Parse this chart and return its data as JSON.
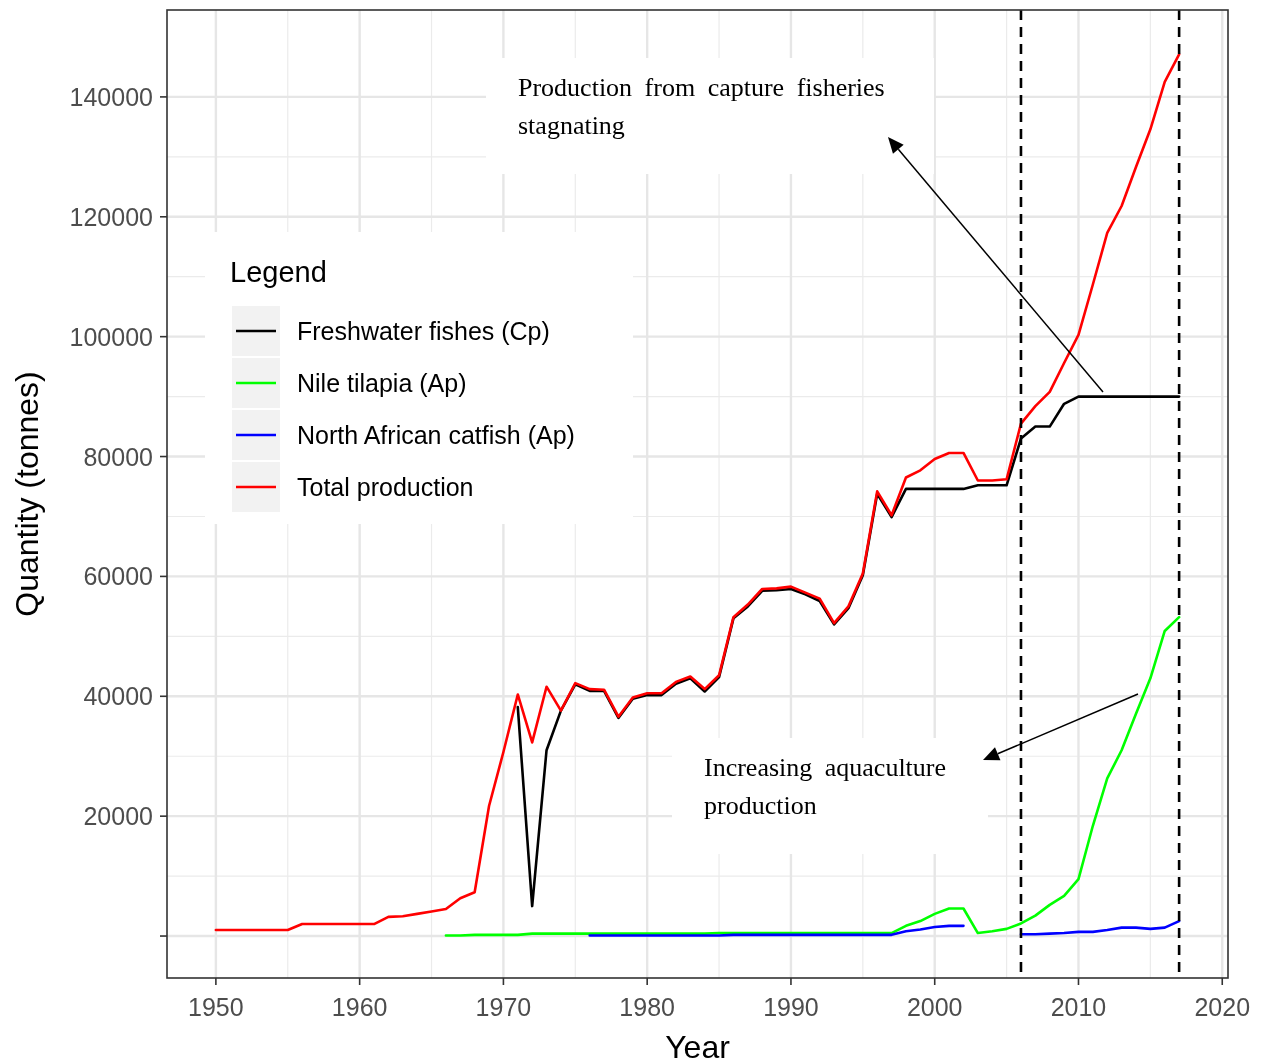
{
  "chart_data": {
    "type": "line",
    "xlabel": "Year",
    "ylabel": "Quantity (tonnes)",
    "legend_title": "Legend",
    "legend": "left",
    "grid": true,
    "line_style": "solid",
    "xlim": [
      1946.6,
      2020.4
    ],
    "ylim": [
      -7000,
      154500
    ],
    "xticks": [
      1950,
      1960,
      1970,
      1980,
      1990,
      2000,
      2010,
      2020
    ],
    "yticks": [
      {
        "value": 0,
        "label": null
      },
      20000,
      40000,
      60000,
      80000,
      100000,
      120000,
      140000
    ],
    "x": [
      1950,
      1951,
      1952,
      1953,
      1954,
      1955,
      1956,
      1957,
      1958,
      1959,
      1960,
      1961,
      1962,
      1963,
      1964,
      1965,
      1966,
      1967,
      1968,
      1969,
      1970,
      1971,
      1972,
      1973,
      1974,
      1975,
      1976,
      1977,
      1978,
      1979,
      1980,
      1981,
      1982,
      1983,
      1984,
      1985,
      1986,
      1987,
      1988,
      1989,
      1990,
      1991,
      1992,
      1993,
      1994,
      1995,
      1996,
      1997,
      1998,
      1999,
      2000,
      2001,
      2002,
      2003,
      2004,
      2005,
      2006,
      2007,
      2008,
      2009,
      2010,
      2011,
      2012,
      2013,
      2014,
      2015,
      2016,
      2017
    ],
    "series": [
      {
        "name": "Freshwater fishes (Cp)",
        "color": "#000000",
        "values": [
          null,
          null,
          null,
          null,
          null,
          null,
          null,
          null,
          null,
          null,
          null,
          null,
          null,
          null,
          null,
          null,
          null,
          null,
          null,
          null,
          null,
          38200,
          5000,
          31000,
          37600,
          42000,
          40900,
          40900,
          36400,
          39600,
          40200,
          40200,
          42100,
          43000,
          40800,
          43200,
          53000,
          55000,
          57600,
          57700,
          57900,
          57000,
          55900,
          52000,
          54700,
          60200,
          73800,
          69900,
          74600,
          74600,
          74600,
          74600,
          74600,
          75200,
          75200,
          75200,
          83000,
          85000,
          85000,
          88800,
          90000,
          90000,
          90000,
          90000,
          90000,
          90000,
          90000,
          90000
        ]
      },
      {
        "name": "Nile tilapia (Ap)",
        "color": "#00ff00",
        "values": [
          null,
          null,
          null,
          null,
          null,
          null,
          null,
          null,
          null,
          null,
          null,
          null,
          null,
          null,
          null,
          null,
          100,
          100,
          200,
          200,
          200,
          200,
          400,
          400,
          400,
          400,
          400,
          400,
          400,
          400,
          400,
          400,
          400,
          400,
          400,
          500,
          500,
          500,
          500,
          500,
          500,
          500,
          500,
          500,
          500,
          500,
          500,
          500,
          1700,
          2500,
          3700,
          4600,
          4600,
          500,
          800,
          1200,
          2100,
          3400,
          5200,
          6700,
          9500,
          18400,
          26300,
          31000,
          37100,
          43000,
          50900,
          53200
        ]
      },
      {
        "name": "North African catfish (Ap)",
        "color": "#0000ff",
        "values": [
          null,
          null,
          null,
          null,
          null,
          null,
          null,
          null,
          null,
          null,
          null,
          null,
          null,
          null,
          null,
          null,
          null,
          null,
          null,
          null,
          null,
          null,
          null,
          null,
          null,
          null,
          100,
          100,
          100,
          100,
          100,
          100,
          100,
          100,
          100,
          100,
          200,
          200,
          200,
          200,
          200,
          200,
          200,
          200,
          200,
          200,
          200,
          200,
          800,
          1100,
          1500,
          1700,
          1700,
          null,
          null,
          null,
          300,
          300,
          400,
          500,
          700,
          700,
          1000,
          1400,
          1400,
          1200,
          1400,
          2500
        ]
      },
      {
        "name": "Total production",
        "color": "#ff0000",
        "values": [
          1000,
          1000,
          1000,
          1000,
          1000,
          1000,
          2000,
          2000,
          2000,
          2000,
          2000,
          2000,
          3200,
          3300,
          3700,
          4100,
          4500,
          6300,
          7300,
          21700,
          30700,
          40300,
          32300,
          41600,
          37600,
          42200,
          41200,
          41100,
          36600,
          39800,
          40500,
          40500,
          42400,
          43300,
          41200,
          43500,
          53200,
          55300,
          57900,
          58000,
          58300,
          57300,
          56300,
          52200,
          55000,
          60500,
          74200,
          70200,
          76500,
          77700,
          79600,
          80600,
          80600,
          76000,
          76000,
          76200,
          85500,
          88400,
          90800,
          95600,
          100300,
          108700,
          117300,
          121800,
          128300,
          134600,
          142500,
          147100
        ]
      }
    ],
    "ref_lines": [
      {
        "axis": "x",
        "value": 2006,
        "color": "#000000",
        "line_style": "dashed"
      },
      {
        "axis": "x",
        "value": 2017,
        "color": "#000000",
        "line_style": "dashed"
      }
    ],
    "annotations": [
      "Production from capture fisheries stagnating",
      "Increasing aquaculture production"
    ]
  }
}
